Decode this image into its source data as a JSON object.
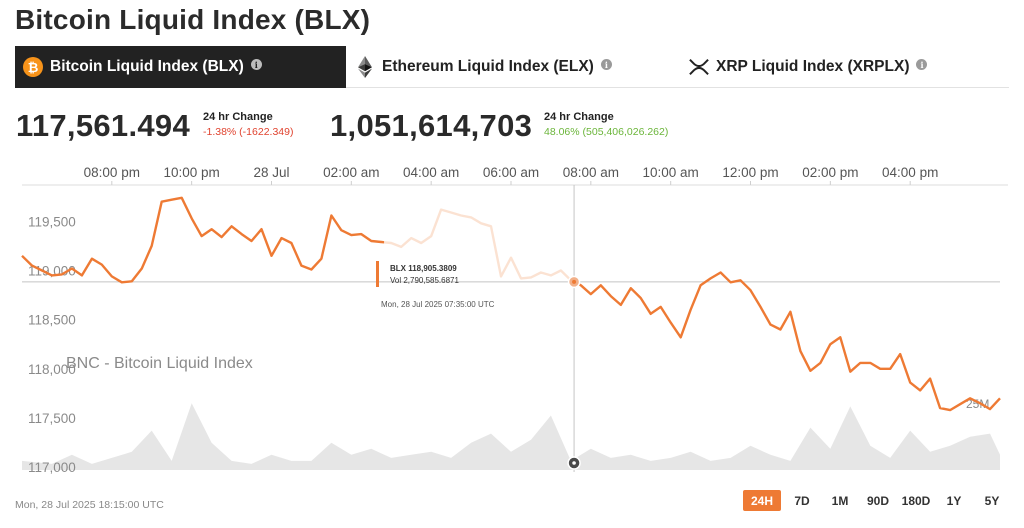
{
  "page_title": "Bitcoin Liquid Index (BLX)",
  "tabs": [
    {
      "label": "Bitcoin Liquid Index (BLX)",
      "icon": "bitcoin-icon",
      "active": true
    },
    {
      "label": "Ethereum Liquid Index (ELX)",
      "icon": "ethereum-icon",
      "active": false
    },
    {
      "label": "XRP Liquid Index (XRPLX)",
      "icon": "xrp-icon",
      "active": false
    }
  ],
  "stats": [
    {
      "value": "117,561.494",
      "label": "24 hr Change",
      "change": "-1.38% (-1622.349)",
      "direction": "down"
    },
    {
      "value": "1,051,614,703",
      "label": "24 hr Change",
      "change": "48.06% (505,406,026.262)",
      "direction": "up"
    }
  ],
  "colors": {
    "line": "#ee7a34",
    "volume": "#e6e6e6",
    "negative": "#e0432f",
    "positive": "#6bb53a"
  },
  "tooltip": {
    "series": "BLX",
    "price_text": "BLX 118,905.3809",
    "volume_text": "Vol 2,790,585.6871",
    "time_text": "Mon, 28 Jul 2025 07:35:00 UTC"
  },
  "watermark": "BNC - Bitcoin Liquid Index",
  "volume_axis_label": "25M",
  "footer_timestamp": "Mon, 28 Jul 2025 18:15:00 UTC",
  "ranges": [
    {
      "label": "24H",
      "active": true
    },
    {
      "label": "7D",
      "active": false
    },
    {
      "label": "1M",
      "active": false
    },
    {
      "label": "90D",
      "active": false
    },
    {
      "label": "180D",
      "active": false
    },
    {
      "label": "1Y",
      "active": false
    },
    {
      "label": "5Y",
      "active": false
    }
  ],
  "chart_data": {
    "type": "line",
    "title": "",
    "xlabel": "",
    "ylabel": "",
    "x_tick_labels": [
      "08:00 pm",
      "10:00 pm",
      "28 Jul",
      "02:00 am",
      "04:00 am",
      "06:00 am",
      "08:00 am",
      "10:00 am",
      "12:00 pm",
      "02:00 pm",
      "04:00 pm"
    ],
    "x_tick_hours": [
      20,
      22,
      24,
      26,
      28,
      30,
      32,
      34,
      36,
      38,
      40
    ],
    "x_range_hours": [
      17.75,
      42.25
    ],
    "y_tick_labels": [
      "119,500",
      "119,000",
      "118,500",
      "118,000",
      "117,500",
      "117,000"
    ],
    "y_ticks": [
      119500,
      119000,
      118500,
      118000,
      117500,
      117000
    ],
    "ylim": [
      116950,
      119870
    ],
    "grid": false,
    "hover_hour": 31.58,
    "series": [
      {
        "name": "BLX",
        "hours": [
          17.75,
          18.0,
          18.25,
          18.5,
          18.75,
          19.0,
          19.25,
          19.5,
          19.75,
          20.0,
          20.25,
          20.5,
          20.75,
          21.0,
          21.25,
          21.5,
          21.75,
          22.0,
          22.25,
          22.5,
          22.75,
          23.0,
          23.25,
          23.5,
          23.75,
          24.0,
          24.25,
          24.5,
          24.75,
          25.0,
          25.25,
          25.5,
          25.75,
          26.0,
          26.25,
          26.5,
          26.75,
          27.0,
          27.25,
          27.5,
          27.75,
          28.0,
          28.25,
          28.5,
          28.75,
          29.0,
          29.25,
          29.5,
          29.75,
          30.0,
          30.25,
          30.5,
          30.75,
          31.0,
          31.25,
          31.5,
          31.75,
          32.0,
          32.25,
          32.5,
          32.75,
          33.0,
          33.25,
          33.5,
          33.75,
          34.0,
          34.25,
          34.5,
          34.75,
          35.0,
          35.25,
          35.5,
          35.75,
          36.0,
          36.25,
          36.5,
          36.75,
          37.0,
          37.25,
          37.5,
          37.75,
          38.0,
          38.25,
          38.5,
          38.75,
          39.0,
          39.25,
          39.5,
          39.75,
          40.0,
          40.25,
          40.5,
          40.75,
          41.0,
          41.25,
          41.5,
          41.75,
          42.0,
          42.25
        ],
        "values": [
          119150,
          119050,
          119000,
          118950,
          118960,
          119020,
          118950,
          119120,
          119060,
          118940,
          118880,
          118890,
          119020,
          119250,
          119700,
          119720,
          119740,
          119530,
          119350,
          119420,
          119340,
          119450,
          119370,
          119300,
          119420,
          119150,
          119330,
          119280,
          119050,
          119010,
          119120,
          119560,
          119410,
          119360,
          119370,
          119300,
          119290,
          119280,
          119240,
          119330,
          119280,
          119350,
          119620,
          119590,
          119560,
          119540,
          119480,
          119450,
          118940,
          119130,
          118920,
          118930,
          118980,
          118950,
          119000,
          118900,
          118850,
          118760,
          118850,
          118740,
          118650,
          118820,
          118720,
          118560,
          118630,
          118470,
          118320,
          118600,
          118850,
          118920,
          118980,
          118880,
          118900,
          118800,
          118630,
          118450,
          118400,
          118580,
          118180,
          117980,
          118060,
          118250,
          118320,
          117970,
          118060,
          118060,
          118000,
          118000,
          118150,
          117860,
          117780,
          117900,
          117600,
          117580,
          117640,
          117700,
          117650,
          117590,
          117700
        ]
      }
    ],
    "volume_series": {
      "name": "Vol",
      "hours": [
        17.75,
        18.5,
        19.0,
        19.5,
        20.0,
        20.5,
        21.0,
        21.5,
        22.0,
        22.5,
        23.0,
        23.5,
        24.0,
        24.5,
        25.0,
        25.5,
        26.0,
        26.5,
        27.0,
        27.5,
        28.0,
        28.5,
        29.0,
        29.5,
        30.0,
        30.5,
        31.0,
        31.5,
        32.0,
        32.5,
        33.0,
        33.5,
        34.0,
        34.5,
        35.0,
        35.5,
        36.0,
        36.5,
        37.0,
        37.5,
        38.0,
        38.5,
        39.0,
        39.5,
        40.0,
        40.5,
        41.0,
        41.5,
        42.0,
        42.25
      ],
      "values": [
        3,
        2,
        5,
        2,
        4,
        6,
        13,
        3,
        22,
        9,
        3,
        2,
        5,
        3,
        3,
        9,
        5,
        7,
        4,
        5,
        6,
        4,
        9,
        12,
        6,
        10,
        18,
        3,
        7,
        4,
        5,
        3,
        4,
        6,
        3,
        4,
        8,
        5,
        3,
        14,
        7,
        21,
        8,
        4,
        13,
        6,
        8,
        11,
        12,
        5
      ]
    }
  }
}
